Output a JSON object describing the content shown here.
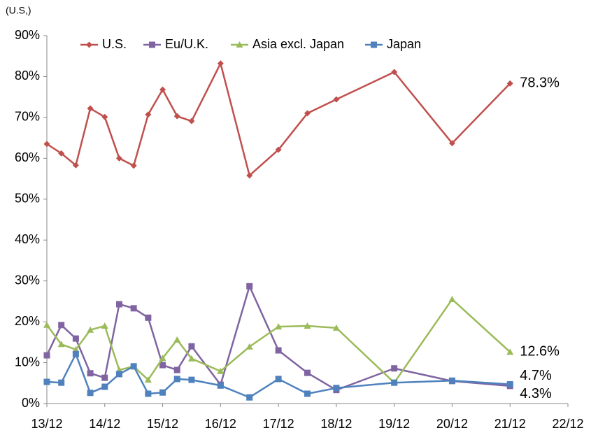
{
  "chart_data": {
    "type": "line",
    "y_label": "(U.S,)",
    "x": [
      13,
      13.25,
      13.5,
      13.75,
      14,
      14.25,
      14.5,
      14.75,
      15,
      15.25,
      15.5,
      16,
      16.5,
      17,
      17.5,
      18,
      19,
      20,
      21
    ],
    "xlim": [
      13,
      22
    ],
    "xticks": [
      {
        "value": 13,
        "label": "13/12"
      },
      {
        "value": 14,
        "label": "14/12"
      },
      {
        "value": 15,
        "label": "15/12"
      },
      {
        "value": 16,
        "label": "16/12"
      },
      {
        "value": 17,
        "label": "17/12"
      },
      {
        "value": 18,
        "label": "18/12"
      },
      {
        "value": 19,
        "label": "19/12"
      },
      {
        "value": 20,
        "label": "20/12"
      },
      {
        "value": 21,
        "label": "21/12"
      },
      {
        "value": 22,
        "label": "22/12"
      }
    ],
    "ylim": [
      0,
      90
    ],
    "yticks": [
      {
        "value": 0,
        "label": "0%"
      },
      {
        "value": 10,
        "label": "10%"
      },
      {
        "value": 20,
        "label": "20%"
      },
      {
        "value": 30,
        "label": "30%"
      },
      {
        "value": 40,
        "label": "40%"
      },
      {
        "value": 50,
        "label": "50%"
      },
      {
        "value": 60,
        "label": "60%"
      },
      {
        "value": 70,
        "label": "70%"
      },
      {
        "value": 80,
        "label": "80%"
      },
      {
        "value": 90,
        "label": "90%"
      }
    ],
    "grid": false,
    "legend": "top",
    "series": [
      {
        "name": "U.S.",
        "color": "#c0504d",
        "marker": "diamond",
        "values": [
          63.5,
          61.2,
          58.3,
          72.2,
          70.1,
          60.0,
          58.2,
          70.7,
          76.8,
          70.3,
          69.1,
          83.2,
          55.8,
          62.1,
          71.0,
          74.4,
          81.1,
          63.7,
          78.3
        ],
        "value_labels": [
          null,
          null,
          null,
          null,
          null,
          null,
          null,
          null,
          null,
          null,
          null,
          null,
          null,
          null,
          null,
          null,
          null,
          null,
          "78.3%"
        ]
      },
      {
        "name": "Eu/U.K.",
        "color": "#8064a2",
        "marker": "square",
        "values": [
          11.8,
          19.2,
          15.9,
          7.4,
          6.3,
          24.3,
          23.3,
          21.0,
          9.4,
          8.2,
          14.0,
          4.6,
          28.7,
          13.0,
          7.5,
          3.3,
          8.6,
          5.5,
          4.3
        ],
        "value_labels": [
          null,
          null,
          null,
          null,
          null,
          null,
          null,
          null,
          null,
          null,
          null,
          null,
          null,
          null,
          null,
          null,
          null,
          null,
          "4.3%"
        ]
      },
      {
        "name": "Asia excl. Japan",
        "color": "#9bbb59",
        "marker": "triangle",
        "values": [
          19.2,
          14.5,
          13.2,
          18.0,
          19.0,
          8.2,
          9.1,
          5.8,
          11.1,
          15.6,
          11.0,
          7.9,
          13.9,
          18.8,
          19.0,
          18.5,
          5.1,
          25.5,
          12.6
        ],
        "value_labels": [
          null,
          null,
          null,
          null,
          null,
          null,
          null,
          null,
          null,
          null,
          null,
          null,
          null,
          null,
          null,
          null,
          null,
          null,
          "12.6%"
        ]
      },
      {
        "name": "Japan",
        "color": "#4f81bd",
        "marker": "square",
        "values": [
          5.3,
          5.1,
          12.1,
          2.6,
          4.1,
          7.2,
          9.1,
          2.4,
          2.7,
          6.0,
          5.8,
          4.4,
          1.5,
          6.0,
          2.4,
          3.8,
          5.1,
          5.6,
          4.7
        ],
        "value_labels": [
          null,
          null,
          null,
          null,
          null,
          null,
          null,
          null,
          null,
          null,
          null,
          null,
          null,
          null,
          null,
          null,
          null,
          null,
          "4.7%"
        ]
      }
    ]
  }
}
